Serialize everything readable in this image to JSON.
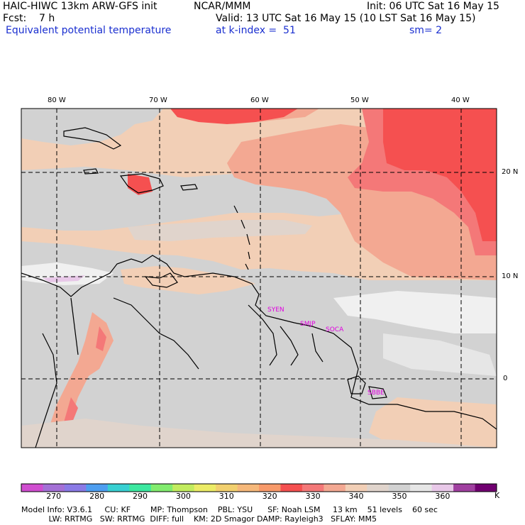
{
  "header": {
    "model": "HAIC-HIWC 13km ARW-GFS init",
    "center": "NCAR/MMM",
    "init": "Init: 06 UTC Sat 16 May 15",
    "fcst": "Fcst:    7 h",
    "valid": "Valid: 13 UTC Sat 16 May 15 (10 LST Sat 16 May 15)",
    "field": "Equivalent potential temperature",
    "level": "at k-index =  51",
    "smoothing": "sm= 2"
  },
  "map": {
    "lon_labels": [
      "80 W",
      "70 W",
      "60 W",
      "50 W",
      "40 W"
    ],
    "lat_labels": [
      "20 N",
      "10 N",
      "0"
    ],
    "sites": [
      "SYEN",
      "SMJP",
      "SOCA",
      "SBBE"
    ]
  },
  "colorbar": {
    "colors": [
      "#d04ed0",
      "#a470d6",
      "#8a7ae6",
      "#4e9ef0",
      "#38d0d2",
      "#3ce8a0",
      "#82ec6e",
      "#c2ec5e",
      "#ecec66",
      "#f2d06e",
      "#f6b87a",
      "#f89a6a",
      "#f55050",
      "#f47878",
      "#f3a892",
      "#f2cfb6",
      "#e0d4cc",
      "#d2d2d2",
      "#e6e6e6",
      "#e8c8e8",
      "#a040a0",
      "#700070"
    ],
    "ticks": [
      "270",
      "280",
      "290",
      "300",
      "310",
      "320",
      "330",
      "340",
      "350",
      "360"
    ],
    "unit": "K"
  },
  "model_info": {
    "line1": "Model Info: V3.6.1     CU: KF        MP: Thompson    PBL: YSU      SF: Noah LSM     13 km    51 levels    60 sec",
    "line2": "           LW: RRTMG   SW: RRTMG  DIFF: full    KM: 2D Smagor DAMP: Rayleigh3   SFLAY: MM5"
  }
}
